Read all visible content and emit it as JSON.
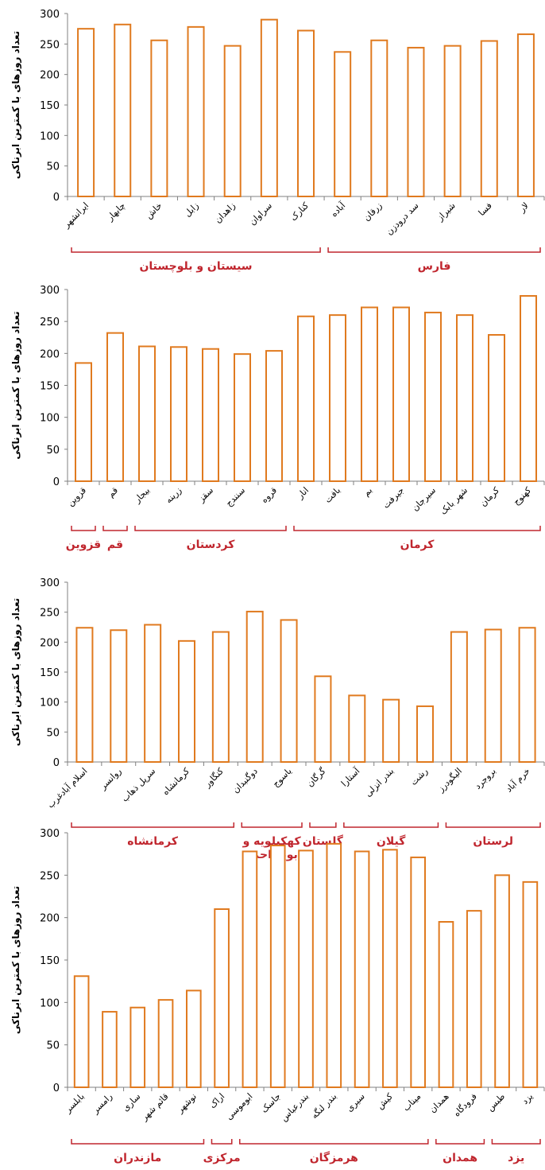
{
  "colors": {
    "bar": "#E07A1F",
    "group": "#C0262E",
    "axis": "#808080",
    "text": "#000000"
  },
  "chart_data": [
    {
      "type": "bar",
      "ylabel": "تعداد روزهای با کمترین ابرناکی",
      "ylim": [
        0,
        300
      ],
      "yticks": [
        "0",
        "50",
        "100",
        "150",
        "200",
        "250",
        "300"
      ],
      "categories": [
        "ایرانشهر",
        "چابهار",
        "خاش",
        "زابل",
        "زاهدان",
        "سراوان",
        "کنارک",
        "آباده",
        "زرقان",
        "سد درودزن",
        "شیراز",
        "فسا",
        "لار"
      ],
      "values": [
        275,
        282,
        256,
        278,
        247,
        290,
        272,
        237,
        256,
        244,
        247,
        255,
        266
      ],
      "groups": [
        {
          "label": "سیستان و بلوچستان",
          "from": 0,
          "to": 6
        },
        {
          "label": "فارس",
          "from": 7,
          "to": 12
        }
      ]
    },
    {
      "type": "bar",
      "ylabel": "تعداد روزهای با کمترین ابرناکی",
      "ylim": [
        0,
        300
      ],
      "yticks": [
        "0",
        "50",
        "100",
        "150",
        "200",
        "250",
        "300"
      ],
      "categories": [
        "قزوین",
        "قم",
        "بیجار",
        "زرینه",
        "سقز",
        "سنندج",
        "قروه",
        "انار",
        "بافت",
        "بم",
        "جیرفت",
        "سیرجان",
        "شهر بابک",
        "کرمان",
        "کهنوج"
      ],
      "values": [
        185,
        232,
        211,
        210,
        207,
        199,
        204,
        258,
        260,
        272,
        272,
        264,
        260,
        229,
        290
      ],
      "groups": [
        {
          "label": "قزوین",
          "from": 0,
          "to": 0
        },
        {
          "label": "قم",
          "from": 1,
          "to": 1
        },
        {
          "label": "کردستان",
          "from": 2,
          "to": 6
        },
        {
          "label": "کرمان",
          "from": 7,
          "to": 14
        }
      ]
    },
    {
      "type": "bar",
      "ylabel": "تعداد روزهای با کمترین ابرناکی",
      "ylim": [
        0,
        300
      ],
      "yticks": [
        "0",
        "50",
        "100",
        "150",
        "200",
        "250",
        "300"
      ],
      "categories": [
        "اسلام آبادغرب",
        "روانسر",
        "سرپل ذهاب",
        "کرمانشاه",
        "کنگاور",
        "دوگنبدان",
        "یاسوج",
        "گرگان",
        "آستارا",
        "بندر انزلی",
        "رشت",
        "الیگودرز",
        "بروجرد",
        "خرم آباد"
      ],
      "values": [
        224,
        220,
        229,
        202,
        217,
        251,
        237,
        143,
        111,
        104,
        93,
        217,
        221,
        224
      ],
      "groups": [
        {
          "label": "کرمانشاه",
          "from": 0,
          "to": 4
        },
        {
          "label": "کهکیلویه و",
          "label2": "بویر احمد",
          "from": 5,
          "to": 6
        },
        {
          "label": "گلستان",
          "from": 7,
          "to": 7
        },
        {
          "label": "گیلان",
          "from": 8,
          "to": 10
        },
        {
          "label": "لرستان",
          "from": 11,
          "to": 13
        }
      ]
    },
    {
      "type": "bar",
      "ylabel": "تعداد روزهای با کمترین ابرناکی",
      "ylim": [
        0,
        300
      ],
      "yticks": [
        "0",
        "50",
        "100",
        "150",
        "200",
        "250",
        "300"
      ],
      "categories": [
        "بابلسر",
        "رامسر",
        "ساری",
        "قائم شهر",
        "نوشهر",
        "اراک",
        "ابوموسی",
        "جاسک",
        "بندرعباس",
        "بندر لنگه",
        "سیری",
        "کیش",
        "میناب",
        "همدان",
        "فرودگاه",
        "طبس",
        "یزد"
      ],
      "values": [
        131,
        89,
        94,
        103,
        114,
        210,
        278,
        285,
        279,
        287,
        278,
        280,
        271,
        195,
        208,
        250,
        242
      ],
      "groups": [
        {
          "label": "مازندران",
          "from": 0,
          "to": 4
        },
        {
          "label": "مرکزی",
          "from": 5,
          "to": 5
        },
        {
          "label": "هرمزگان",
          "from": 6,
          "to": 12
        },
        {
          "label": "همدان",
          "from": 13,
          "to": 14
        },
        {
          "label": "یزد",
          "from": 15,
          "to": 16
        }
      ]
    }
  ]
}
